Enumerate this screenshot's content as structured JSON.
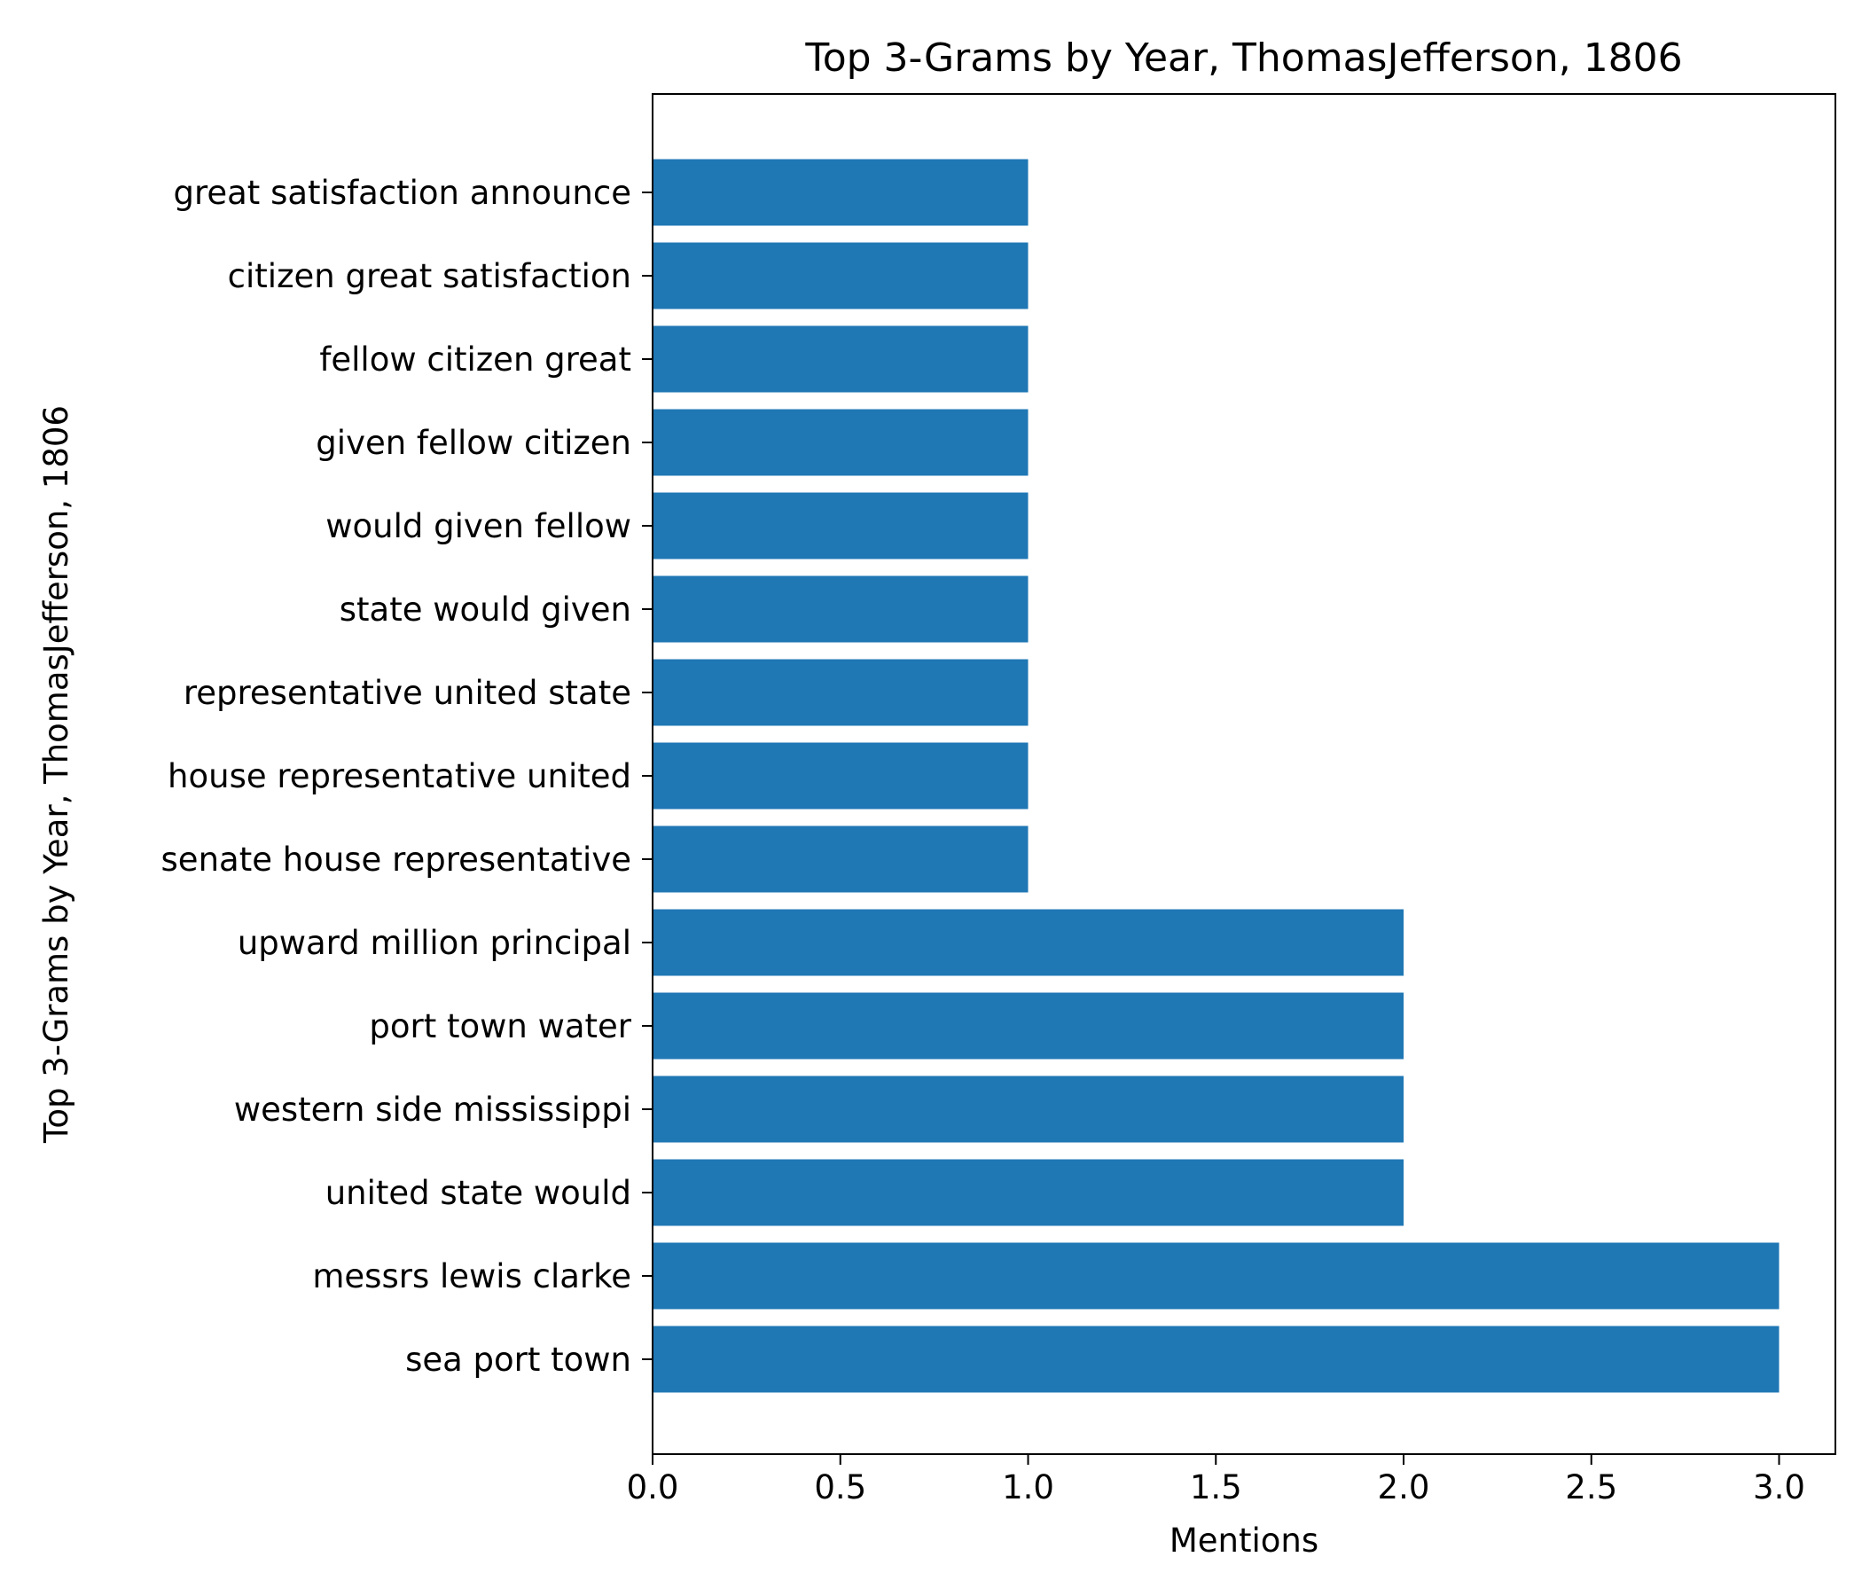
{
  "chart_data": {
    "type": "bar",
    "orientation": "horizontal",
    "title": "Top 3-Grams by Year, ThomasJefferson, 1806",
    "xlabel": "Mentions",
    "ylabel": "Top 3-Grams by Year, ThomasJefferson, 1806",
    "xlim": [
      0,
      3.15
    ],
    "xticks": [
      "0.0",
      "0.5",
      "1.0",
      "1.5",
      "2.0",
      "2.5",
      "3.0"
    ],
    "categories": [
      "sea port town",
      "messrs lewis clarke",
      "united state would",
      "western side mississippi",
      "port town water",
      "upward million principal",
      "senate house representative",
      "house representative united",
      "representative united state",
      "state would given",
      "would given fellow",
      "given fellow citizen",
      "fellow citizen great",
      "citizen great satisfaction",
      "great satisfaction announce"
    ],
    "values": [
      3,
      3,
      2,
      2,
      2,
      2,
      1,
      1,
      1,
      1,
      1,
      1,
      1,
      1,
      1
    ],
    "bar_color": "#1f77b4",
    "grid": false,
    "legend": "none"
  }
}
